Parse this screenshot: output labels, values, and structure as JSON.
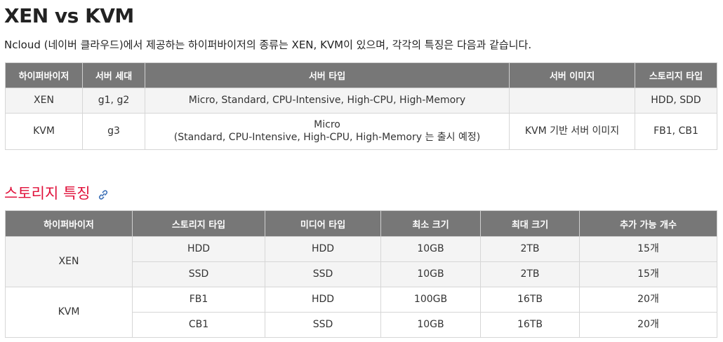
{
  "page": {
    "title": "XEN vs KVM",
    "intro": "Ncloud (네이버 클라우드)에서 제공하는 하이퍼바이저의 종류는 XEN, KVM이 있으며, 각각의 특징은 다음과 같습니다."
  },
  "table1": {
    "headers": [
      "하이퍼바이저",
      "서버 세대",
      "서버 타입",
      "서버 이미지",
      "스토리지 타입"
    ],
    "rows": [
      {
        "hypervisor": "XEN",
        "generation": "g1, g2",
        "server_type_line1": "Micro, Standard, CPU-Intensive, High-CPU, High-Memory",
        "server_type_line2": "",
        "image": "",
        "storage": "HDD, SDD"
      },
      {
        "hypervisor": "KVM",
        "generation": "g3",
        "server_type_line1": "Micro",
        "server_type_line2": "(Standard, CPU-Intensive, High-CPU, High-Memory 는 출시 예정)",
        "image": "KVM 기반 서버 이미지",
        "storage": "FB1, CB1"
      }
    ]
  },
  "section": {
    "heading": "스토리지 특징",
    "link_icon": "link-icon"
  },
  "table2": {
    "headers": [
      "하이퍼바이저",
      "스토리지 타입",
      "미디어 타입",
      "최소 크기",
      "최대 크기",
      "추가 가능 개수"
    ],
    "groups": [
      {
        "hypervisor": "XEN",
        "rows": [
          {
            "storage": "HDD",
            "media": "HDD",
            "min": "10GB",
            "max": "2TB",
            "count": "15개"
          },
          {
            "storage": "SSD",
            "media": "SSD",
            "min": "10GB",
            "max": "2TB",
            "count": "15개"
          }
        ]
      },
      {
        "hypervisor": "KVM",
        "rows": [
          {
            "storage": "FB1",
            "media": "HDD",
            "min": "100GB",
            "max": "16TB",
            "count": "20개"
          },
          {
            "storage": "CB1",
            "media": "SSD",
            "min": "10GB",
            "max": "16TB",
            "count": "20개"
          }
        ]
      }
    ]
  }
}
